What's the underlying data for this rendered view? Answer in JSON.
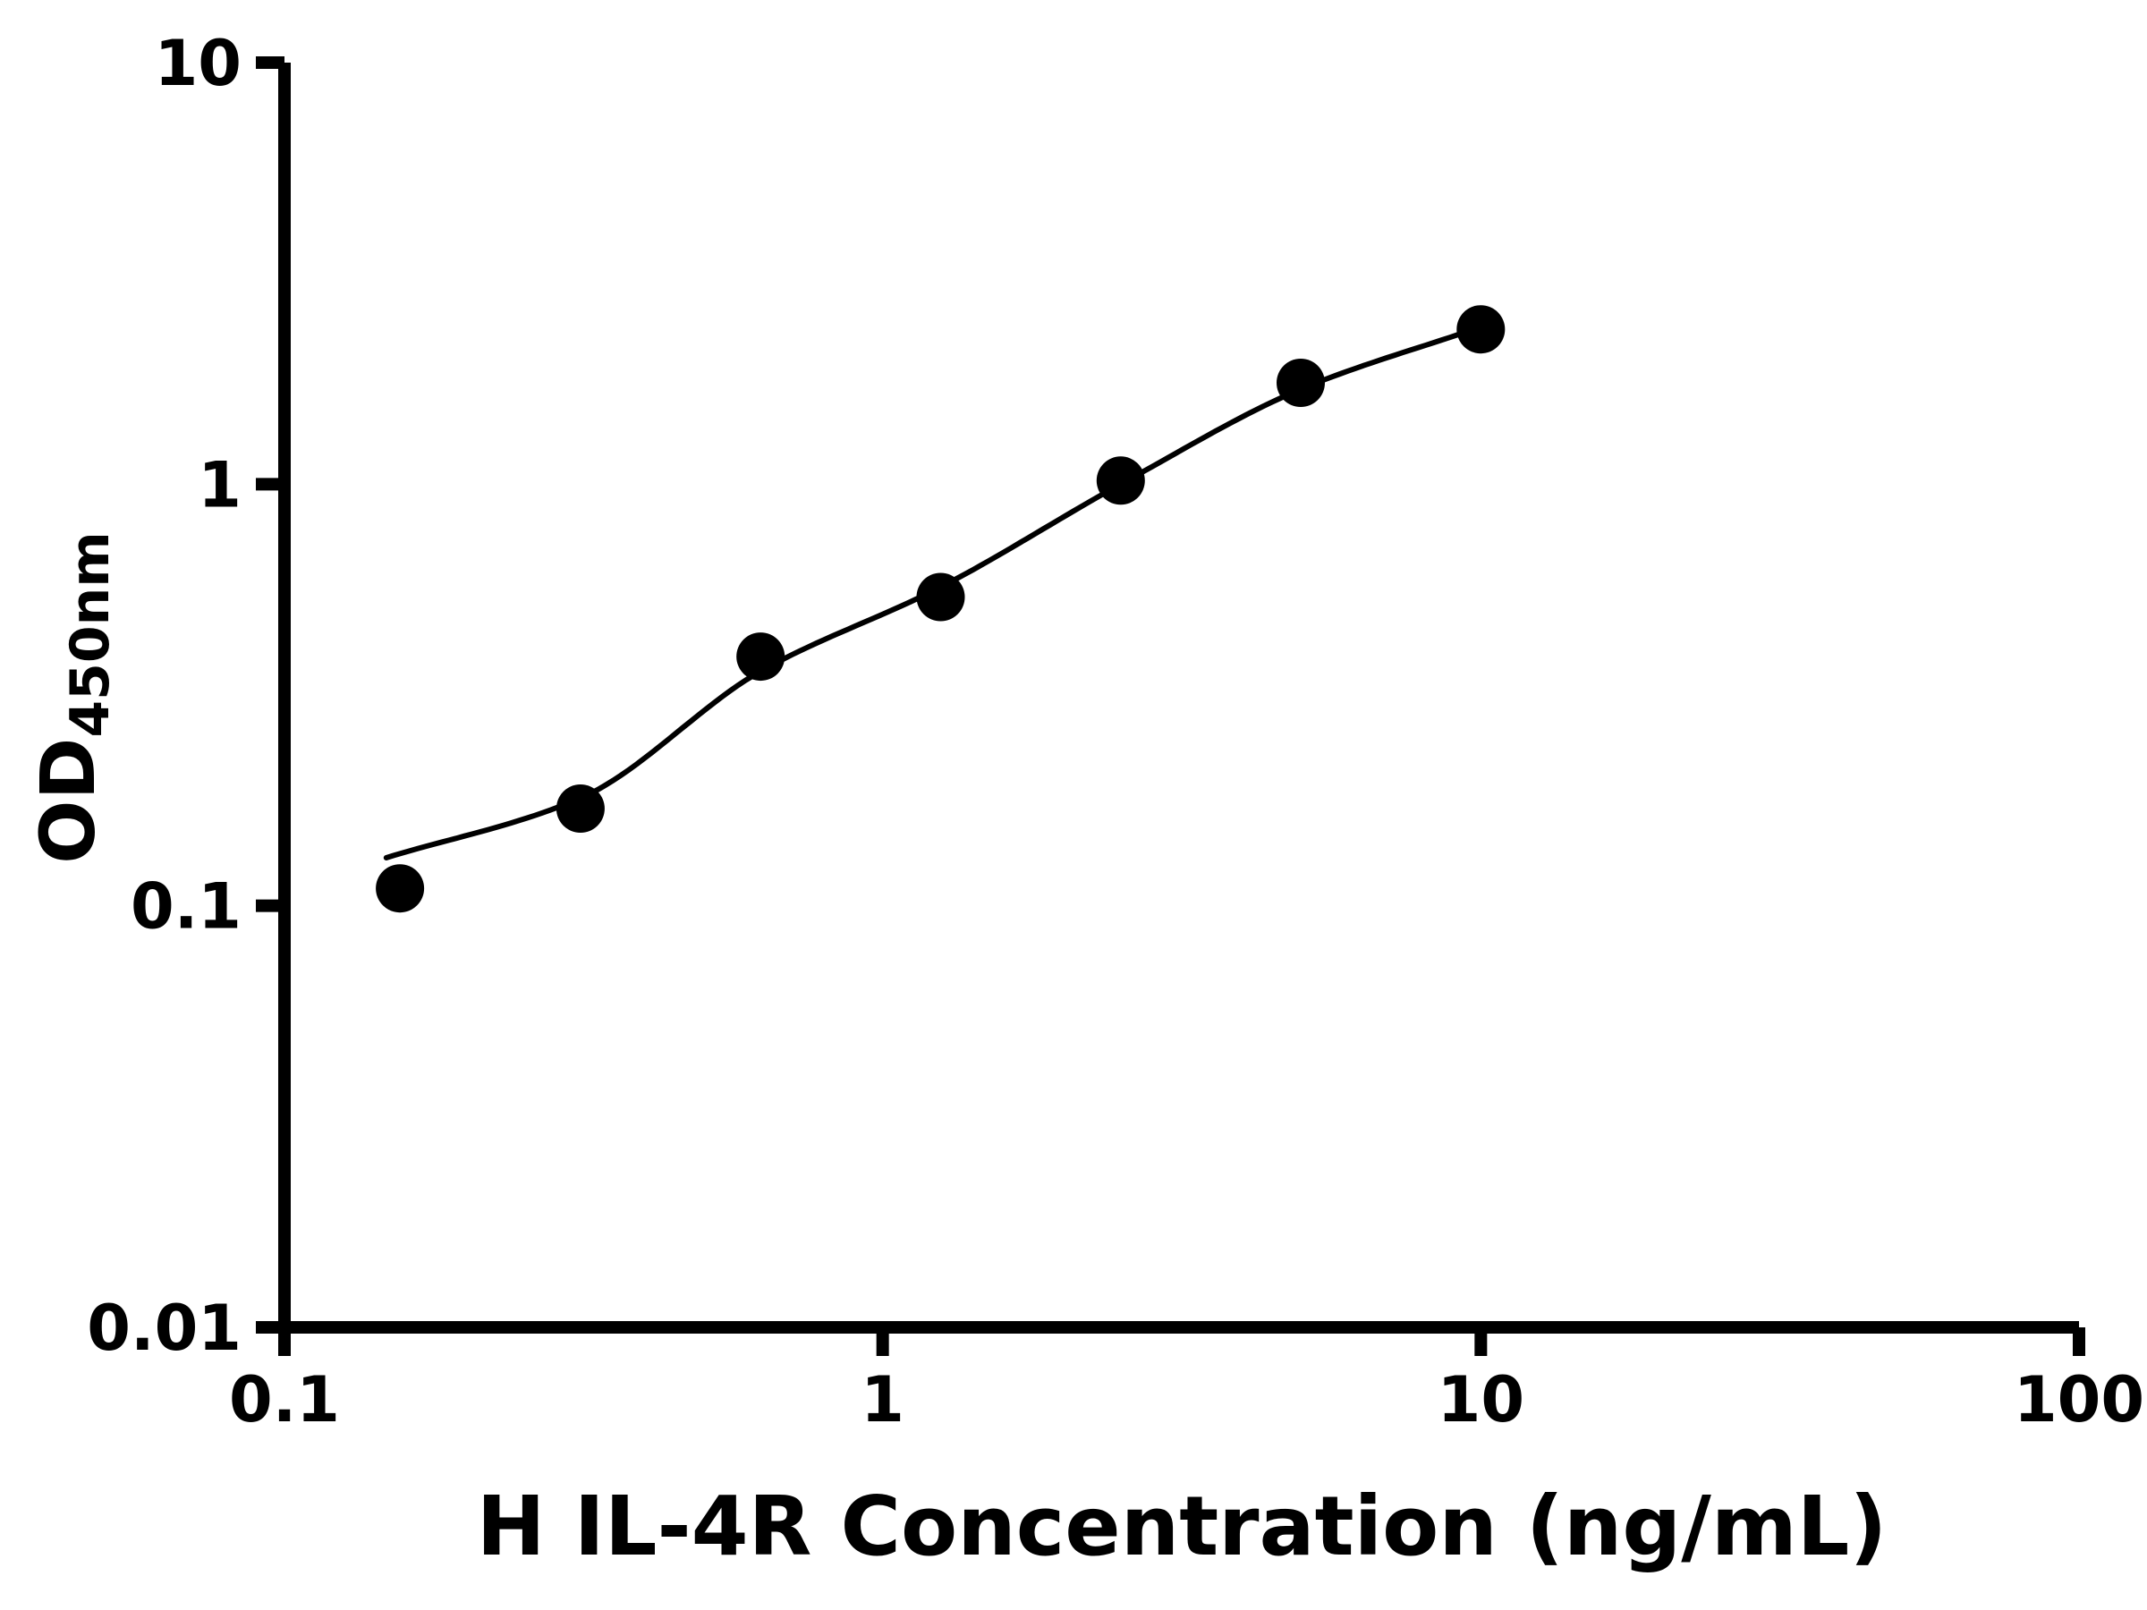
{
  "chart_data": {
    "type": "scatter",
    "title": "",
    "xlabel": "H IL-4R Concentration (ng/mL)",
    "ylabel_main": "OD",
    "ylabel_sub": "450nm",
    "x_scale": "log",
    "y_scale": "log",
    "xlim": [
      0.1,
      100
    ],
    "ylim": [
      0.01,
      10
    ],
    "x_ticks": [
      0.1,
      1,
      10,
      100
    ],
    "x_tick_labels": [
      "0.1",
      "1",
      "10",
      "100"
    ],
    "y_ticks": [
      0.01,
      0.1,
      1,
      10
    ],
    "y_tick_labels": [
      "0.01",
      "0.1",
      "1",
      "10"
    ],
    "grid": false,
    "legend": "none",
    "marker_color": "#000000",
    "line_color": "#000000",
    "axis_color": "#000000",
    "background": "#ffffff",
    "points": {
      "x": [
        0.156,
        0.3125,
        0.625,
        1.25,
        2.5,
        5,
        10
      ],
      "y": [
        0.11,
        0.17,
        0.39,
        0.54,
        1.02,
        1.74,
        2.33
      ]
    },
    "curve": {
      "description": "4-parameter logistic standard-curve fit",
      "x": [
        0.148,
        0.3125,
        0.625,
        1.25,
        2.5,
        5,
        10
      ],
      "y": [
        0.13,
        0.18,
        0.36,
        0.57,
        1.0,
        1.68,
        2.36
      ]
    }
  }
}
